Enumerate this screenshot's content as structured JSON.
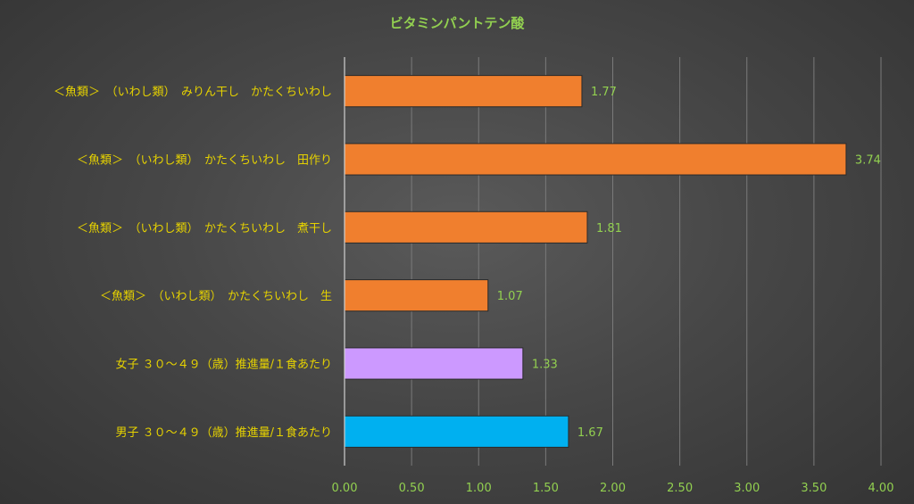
{
  "chart_data": {
    "type": "bar",
    "orientation": "horizontal",
    "title": "ビタミンパントテン酸",
    "categories": [
      "＜魚類＞　（いわし類）　みりん干し　かたくちいわし",
      "＜魚類＞　（いわし類）　かたくちいわし　田作り",
      "＜魚類＞　（いわし類）　かたくちいわし　煮干し",
      "＜魚類＞　（いわし類）　かたくちいわし　生",
      "女子 ３０～４９（歳）推進量/１食あたり",
      "男子 ３０～４９（歳）推進量/１食あたり"
    ],
    "values": [
      1.77,
      3.74,
      1.81,
      1.07,
      1.33,
      1.67
    ],
    "value_labels": [
      "1.77",
      "3.74",
      "1.81",
      "1.07",
      "1.33",
      "1.67"
    ],
    "bar_colors": [
      "#f07f2e",
      "#f07f2e",
      "#f07f2e",
      "#f07f2e",
      "#cc99ff",
      "#00b0f0"
    ],
    "xlim": [
      0,
      4
    ],
    "x_ticks": [
      "0.00",
      "0.50",
      "1.00",
      "1.50",
      "2.00",
      "2.50",
      "3.00",
      "3.50",
      "4.00"
    ],
    "grid": "vertical",
    "legend": "none",
    "colors": {
      "title": "#92d050",
      "category_text": "#e6d200",
      "tick_text": "#92d050",
      "value_text": "#92d050",
      "gridline": "#7a7a7a"
    }
  }
}
